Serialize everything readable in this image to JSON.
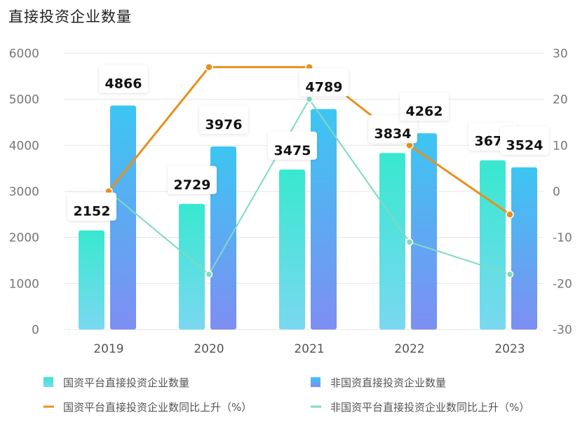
{
  "title": "直接投资企业数量",
  "chart_data": {
    "type": "bar",
    "categories": [
      "2019",
      "2020",
      "2021",
      "2022",
      "2023"
    ],
    "series": [
      {
        "name": "国资平台直接投资企业数量",
        "kind": "bar",
        "axis": "left",
        "values": [
          2152,
          2729,
          3475,
          3834,
          3676
        ]
      },
      {
        "name": "非国资直接投资企业数量",
        "kind": "bar",
        "axis": "left",
        "values": [
          4866,
          3976,
          4789,
          4262,
          3524
        ]
      },
      {
        "name": "国资平台直接投资企业数同比上升（%）",
        "kind": "line",
        "axis": "right",
        "values": [
          0,
          27,
          27,
          10,
          -5
        ]
      },
      {
        "name": "非国资平台直接投资企业数同比上升（%）",
        "kind": "line",
        "axis": "right",
        "values": [
          0,
          -18,
          20,
          -11,
          -18
        ]
      }
    ],
    "y_left": {
      "min": 0,
      "max": 6000,
      "ticks": [
        0,
        1000,
        2000,
        3000,
        4000,
        5000,
        6000
      ]
    },
    "y_right": {
      "min": -30,
      "max": 30,
      "ticks": [
        -30,
        -20,
        -10,
        0,
        10,
        20,
        30
      ]
    },
    "grid": true,
    "legend_position": "bottom",
    "colors": {
      "bar1_top": "#38e8d0",
      "bar1_bottom": "#7ad8f0",
      "bar2_top": "#3cc6f2",
      "bar2_bottom": "#7e8ef2",
      "line1": "#e8901c",
      "line2": "#7ed9c4",
      "grid": "#e6e6e6"
    }
  }
}
